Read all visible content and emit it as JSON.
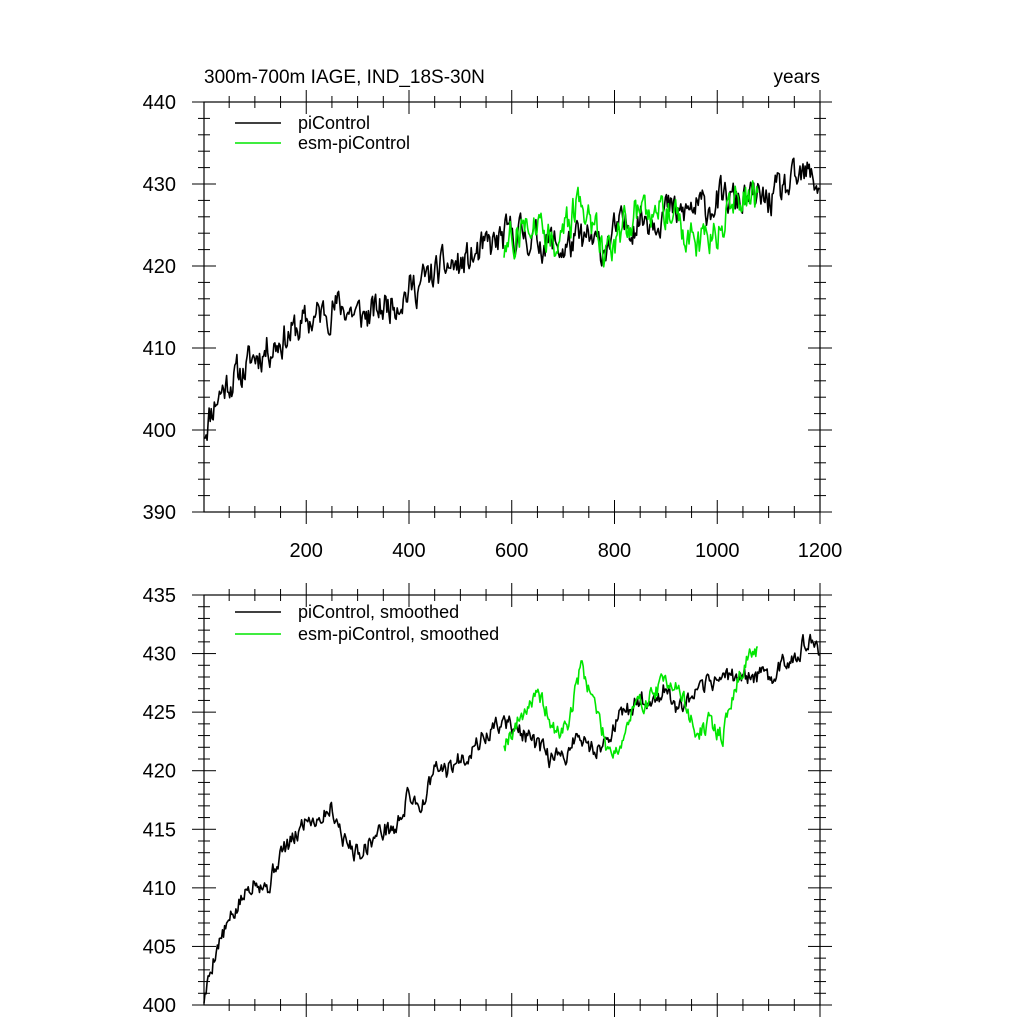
{
  "chart_data": [
    {
      "type": "line",
      "title": "300m-700m IAGE, IND_18S-30N",
      "units_label": "years",
      "xlim": [
        1,
        1200
      ],
      "ylim": [
        390,
        440
      ],
      "x_ticks": [
        200,
        400,
        600,
        800,
        1000,
        1200
      ],
      "x_tick_labels": [
        "200",
        "400",
        "600",
        "800",
        "1000",
        "1200"
      ],
      "y_ticks": [
        390,
        400,
        410,
        420,
        430,
        440
      ],
      "y_tick_labels": [
        "390",
        "400",
        "410",
        "420",
        "430",
        "440"
      ],
      "legend_position": "top-left",
      "series": [
        {
          "name": "piControl",
          "color": "#000000",
          "x": [
            1,
            25,
            50,
            75,
            100,
            125,
            150,
            175,
            200,
            225,
            250,
            275,
            300,
            325,
            350,
            375,
            400,
            425,
            450,
            475,
            500,
            525,
            550,
            575,
            600,
            625,
            650,
            675,
            700,
            725,
            750,
            775,
            800,
            825,
            850,
            875,
            900,
            925,
            950,
            975,
            1000,
            1025,
            1050,
            1075,
            1100,
            1125,
            1150,
            1175,
            1200
          ],
          "values": [
            400,
            404,
            406,
            407,
            409,
            410,
            411,
            412,
            413,
            414,
            415,
            415,
            414,
            414,
            415,
            416,
            417,
            418,
            419,
            420,
            420,
            421,
            422,
            423,
            424,
            424,
            423,
            423,
            422,
            423,
            423,
            422,
            424,
            425,
            426,
            426,
            427,
            426,
            427,
            427,
            428,
            428,
            428,
            428,
            428,
            429,
            430,
            431,
            430
          ],
          "noise": 2.6,
          "seed": 11
        },
        {
          "name": "esm-piControl",
          "color": "#00e600",
          "x": [
            585,
            610,
            635,
            660,
            685,
            710,
            735,
            760,
            785,
            810,
            835,
            860,
            885,
            910,
            935,
            960,
            985,
            1010,
            1035,
            1060,
            1080
          ],
          "values": [
            422,
            424,
            426,
            425,
            423,
            425,
            428,
            425,
            422,
            424,
            426,
            427,
            428,
            427,
            424,
            423,
            423,
            425,
            428,
            428,
            429
          ],
          "noise": 2.8,
          "seed": 27
        }
      ]
    },
    {
      "type": "line",
      "title": "",
      "xlim": [
        1,
        1200
      ],
      "ylim": [
        400,
        435
      ],
      "x_ticks": [
        200,
        400,
        600,
        800,
        1000,
        1200
      ],
      "y_ticks": [
        400,
        405,
        410,
        415,
        420,
        425,
        430,
        435
      ],
      "y_tick_labels": [
        "400",
        "405",
        "410",
        "415",
        "420",
        "425",
        "430",
        "435"
      ],
      "legend_position": "top-left",
      "series": [
        {
          "name": "piControl, smoothed",
          "color": "#000000",
          "x": [
            1,
            25,
            50,
            75,
            100,
            125,
            150,
            175,
            200,
            225,
            250,
            275,
            300,
            325,
            350,
            375,
            400,
            425,
            450,
            475,
            500,
            525,
            550,
            575,
            600,
            625,
            650,
            675,
            700,
            725,
            750,
            775,
            800,
            825,
            850,
            875,
            900,
            925,
            950,
            975,
            1000,
            1025,
            1050,
            1075,
            1100,
            1125,
            1150,
            1175,
            1200
          ],
          "values": [
            400.5,
            405,
            407,
            409,
            411,
            410,
            413,
            414,
            416,
            416,
            417,
            414,
            413,
            414,
            415,
            415,
            418,
            417,
            420,
            420,
            421,
            422,
            423,
            424,
            424,
            423,
            422,
            421,
            421,
            423,
            422,
            422,
            424,
            425,
            426,
            426,
            427,
            425,
            426,
            427,
            428,
            428,
            428,
            428,
            428,
            429,
            430,
            431,
            430
          ],
          "noise": 1.0,
          "seed": 5
        },
        {
          "name": "esm-piControl, smoothed",
          "color": "#00e600",
          "x": [
            585,
            610,
            635,
            660,
            685,
            710,
            735,
            760,
            785,
            810,
            835,
            860,
            885,
            910,
            935,
            960,
            985,
            1010,
            1035,
            1060,
            1080
          ],
          "values": [
            422.5,
            424,
            426,
            426,
            423,
            424,
            429,
            426,
            422,
            422,
            425,
            426,
            427,
            428,
            426,
            423,
            424,
            423,
            427,
            430,
            430
          ],
          "noise": 1.0,
          "seed": 19
        }
      ]
    }
  ]
}
